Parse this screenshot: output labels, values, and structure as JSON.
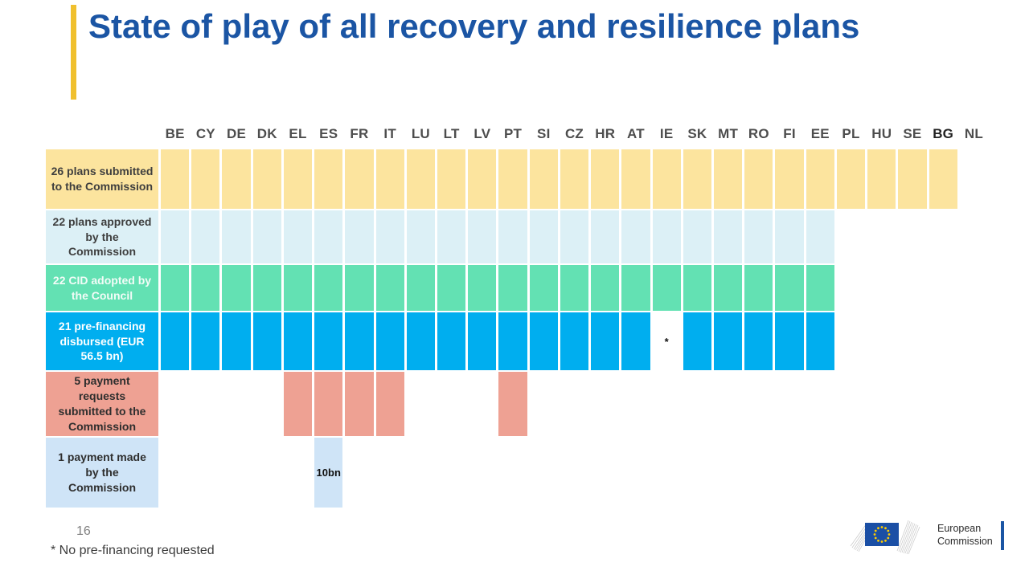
{
  "title": "State of play of all recovery and resilience plans",
  "page_number": "16",
  "footnote": "* No pre-financing requested",
  "logo": {
    "line1": "European",
    "line2": "Commission"
  },
  "colors": {
    "title_blue": "#1B55A4",
    "accent_gold": "#F0C02E",
    "submitted_yellow": "#FCE49E",
    "approved_pale_blue": "#DCF0F6",
    "cid_green": "#63E1B3",
    "prefinancing_blue": "#00AEEF",
    "payment_request_salmon": "#EEA193",
    "payment_made_pale_blue": "#CFE4F7"
  },
  "chart_data": {
    "type": "table",
    "title": "State of play of all recovery and resilience plans",
    "columns": [
      "BE",
      "CY",
      "DE",
      "DK",
      "EL",
      "ES",
      "FR",
      "IT",
      "LU",
      "LT",
      "LV",
      "PT",
      "SI",
      "CZ",
      "HR",
      "AT",
      "IE",
      "SK",
      "MT",
      "RO",
      "FI",
      "EE",
      "PL",
      "HU",
      "SE",
      "BG",
      "NL"
    ],
    "bold_columns": [
      "BG"
    ],
    "legend_position": "left-row-labels",
    "rows": [
      {
        "label": "26 plans submitted to the Commission",
        "count": 26,
        "color": "#FCE49E",
        "label_color": "#3E3E3E",
        "filled": [
          "BE",
          "CY",
          "DE",
          "DK",
          "EL",
          "ES",
          "FR",
          "IT",
          "LU",
          "LT",
          "LV",
          "PT",
          "SI",
          "CZ",
          "HR",
          "AT",
          "IE",
          "SK",
          "MT",
          "RO",
          "FI",
          "EE",
          "PL",
          "HU",
          "SE",
          "BG"
        ],
        "annotations": {}
      },
      {
        "label": "22 plans approved by the Commission",
        "count": 22,
        "color": "#DCF0F6",
        "label_color": "#3E3E3E",
        "filled": [
          "BE",
          "CY",
          "DE",
          "DK",
          "EL",
          "ES",
          "FR",
          "IT",
          "LU",
          "LT",
          "LV",
          "PT",
          "SI",
          "CZ",
          "HR",
          "AT",
          "IE",
          "SK",
          "MT",
          "RO",
          "FI",
          "EE"
        ],
        "annotations": {}
      },
      {
        "label": "22 CID adopted by the Council",
        "count": 22,
        "color": "#63E1B3",
        "label_color": "#F2FCF7",
        "filled": [
          "BE",
          "CY",
          "DE",
          "DK",
          "EL",
          "ES",
          "FR",
          "IT",
          "LU",
          "LT",
          "LV",
          "PT",
          "SI",
          "CZ",
          "HR",
          "AT",
          "IE",
          "SK",
          "MT",
          "RO",
          "FI",
          "EE"
        ],
        "annotations": {}
      },
      {
        "label": "21 pre-financing disbursed (EUR 56.5 bn)",
        "count": 21,
        "color": "#00AEEF",
        "label_color": "#FFFFFF",
        "filled": [
          "BE",
          "CY",
          "DE",
          "DK",
          "EL",
          "ES",
          "FR",
          "IT",
          "LU",
          "LT",
          "LV",
          "PT",
          "SI",
          "CZ",
          "HR",
          "AT",
          "SK",
          "MT",
          "RO",
          "FI",
          "EE"
        ],
        "annotations": {
          "IE": "*"
        }
      },
      {
        "label": "5 payment requests submitted to the Commission",
        "count": 5,
        "color": "#EEA193",
        "label_color": "#2E2E2E",
        "filled": [
          "EL",
          "ES",
          "FR",
          "IT",
          "PT"
        ],
        "annotations": {}
      },
      {
        "label": "1 payment made by the Commission",
        "count": 1,
        "color": "#CFE4F7",
        "label_color": "#2E2E2E",
        "filled": [
          "ES"
        ],
        "annotations": {
          "ES": "10bn"
        }
      }
    ]
  }
}
